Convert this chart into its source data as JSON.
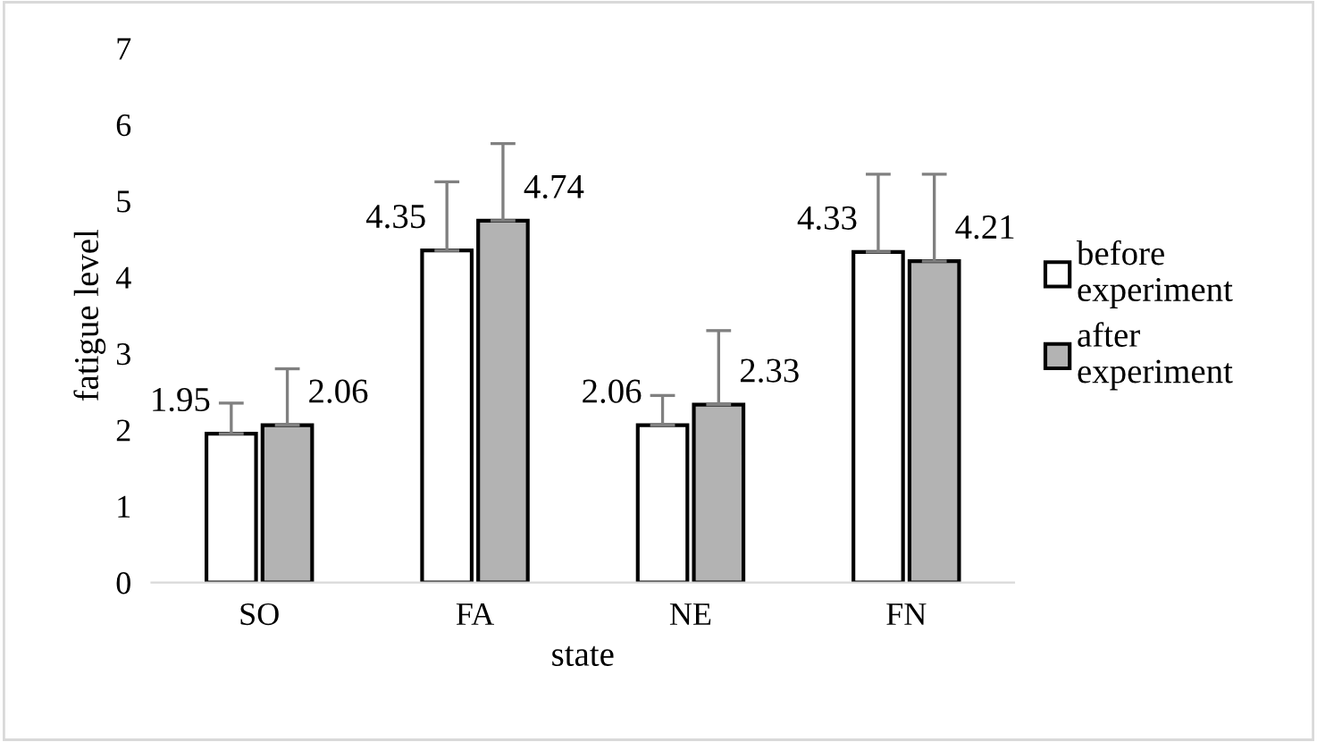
{
  "chart_data": {
    "type": "bar",
    "xlabel": "state",
    "ylabel": "fatigue level",
    "categories": [
      "SO",
      "FA",
      "NE",
      "FN"
    ],
    "series": [
      {
        "name": "before experiment",
        "color": "#ffffff",
        "values": [
          1.95,
          4.35,
          2.06,
          4.33
        ],
        "errors": [
          [
            1.95,
            2.35
          ],
          [
            4.35,
            5.25
          ],
          [
            2.06,
            2.45
          ],
          [
            4.33,
            5.35
          ]
        ]
      },
      {
        "name": "after experiment",
        "color": "#b3b3b3",
        "values": [
          2.06,
          4.74,
          2.33,
          4.21
        ],
        "errors": [
          [
            2.06,
            2.8
          ],
          [
            4.74,
            5.75
          ],
          [
            2.33,
            3.3
          ],
          [
            4.21,
            5.35
          ]
        ]
      }
    ],
    "ylim": [
      0,
      7
    ],
    "yticks": [
      0,
      1,
      2,
      3,
      4,
      5,
      6,
      7
    ],
    "data_labels": true,
    "grid": false,
    "legend": "right"
  }
}
